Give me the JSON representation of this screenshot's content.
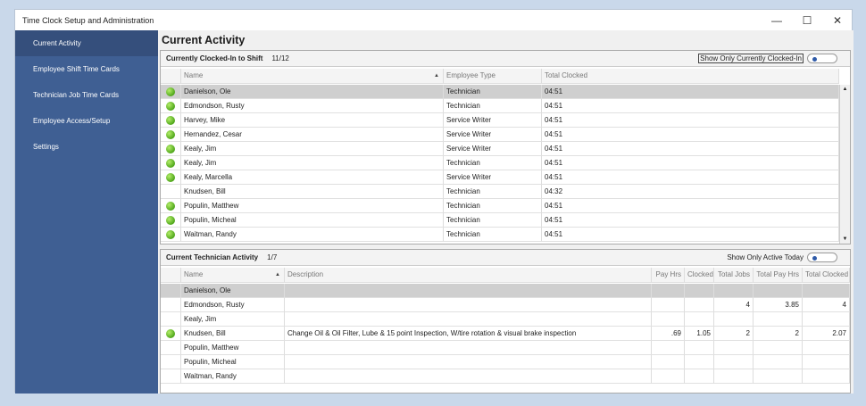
{
  "window": {
    "title": "Time Clock Setup and Administration",
    "minimize": "—",
    "maximize": "☐",
    "close": "✕"
  },
  "sidebar": {
    "items": [
      {
        "label": "Current Activity",
        "selected": true
      },
      {
        "label": "Employee Shift Time Cards"
      },
      {
        "label": "Technician Job Time Cards"
      },
      {
        "label": "Employee Access/Setup"
      },
      {
        "label": "Settings"
      }
    ]
  },
  "page_title": "Current Activity",
  "colors": {
    "sidebar": "#3f5f93",
    "status_active": "#4fa61b"
  },
  "clocked_in": {
    "title": "Currently Clocked-In to Shift",
    "count": "11/12",
    "toggle_label": "Show Only Currently Clocked-In",
    "toggle_on": false,
    "columns": [
      "",
      "Name",
      "Employee Type",
      "Total Clocked"
    ],
    "sort_indicator": "▲",
    "rows": [
      {
        "active": true,
        "name": "Danielson, Ole",
        "type": "Technician",
        "clocked": "04:51",
        "selected": true
      },
      {
        "active": true,
        "name": "Edmondson, Rusty",
        "type": "Technician",
        "clocked": "04:51"
      },
      {
        "active": true,
        "name": "Harvey, Mike",
        "type": "Service Writer",
        "clocked": "04:51"
      },
      {
        "active": true,
        "name": "Hernandez, Cesar",
        "type": "Service Writer",
        "clocked": "04:51"
      },
      {
        "active": true,
        "name": "Kealy, Jim",
        "type": "Service Writer",
        "clocked": "04:51"
      },
      {
        "active": true,
        "name": "Kealy, Jim",
        "type": "Technician",
        "clocked": "04:51"
      },
      {
        "active": true,
        "name": "Kealy, Marcella",
        "type": "Service Writer",
        "clocked": "04:51"
      },
      {
        "active": false,
        "name": "Knudsen, Bill",
        "type": "Technician",
        "clocked": "04:32"
      },
      {
        "active": true,
        "name": "Populin, Matthew",
        "type": "Technician",
        "clocked": "04:51"
      },
      {
        "active": true,
        "name": "Populin, Micheal",
        "type": "Technician",
        "clocked": "04:51"
      },
      {
        "active": true,
        "name": "Waitman, Randy",
        "type": "Technician",
        "clocked": "04:51"
      }
    ]
  },
  "tech_activity": {
    "title": "Current Technician Activity",
    "count": "1/7",
    "toggle_label": "Show Only Active Today",
    "toggle_on": false,
    "columns": [
      "",
      "Name",
      "Description",
      "Pay Hrs",
      "Clocked",
      "Total Jobs",
      "Total Pay Hrs",
      "Total Clocked"
    ],
    "sort_indicator": "▲",
    "rows": [
      {
        "active": false,
        "selected": true,
        "cells": [
          "Danielson, Ole",
          "",
          "",
          "",
          "",
          "",
          ""
        ]
      },
      {
        "active": false,
        "cells": [
          "Edmondson, Rusty",
          "",
          "",
          "",
          "4",
          "3.85",
          "4"
        ]
      },
      {
        "active": false,
        "cells": [
          "Kealy, Jim",
          "",
          "",
          "",
          "",
          "",
          ""
        ]
      },
      {
        "active": true,
        "cells": [
          "Knudsen, Bill",
          "Change Oil & Oil Filter, Lube & 15 point Inspection, W/tire rotation & visual brake inspection",
          ".69",
          "1.05",
          "2",
          "2",
          "2.07"
        ]
      },
      {
        "active": false,
        "cells": [
          "Populin, Matthew",
          "",
          "",
          "",
          "",
          "",
          ""
        ]
      },
      {
        "active": false,
        "cells": [
          "Populin, Micheal",
          "",
          "",
          "",
          "",
          "",
          ""
        ]
      },
      {
        "active": false,
        "cells": [
          "Waitman, Randy",
          "",
          "",
          "",
          "",
          "",
          ""
        ]
      }
    ]
  }
}
